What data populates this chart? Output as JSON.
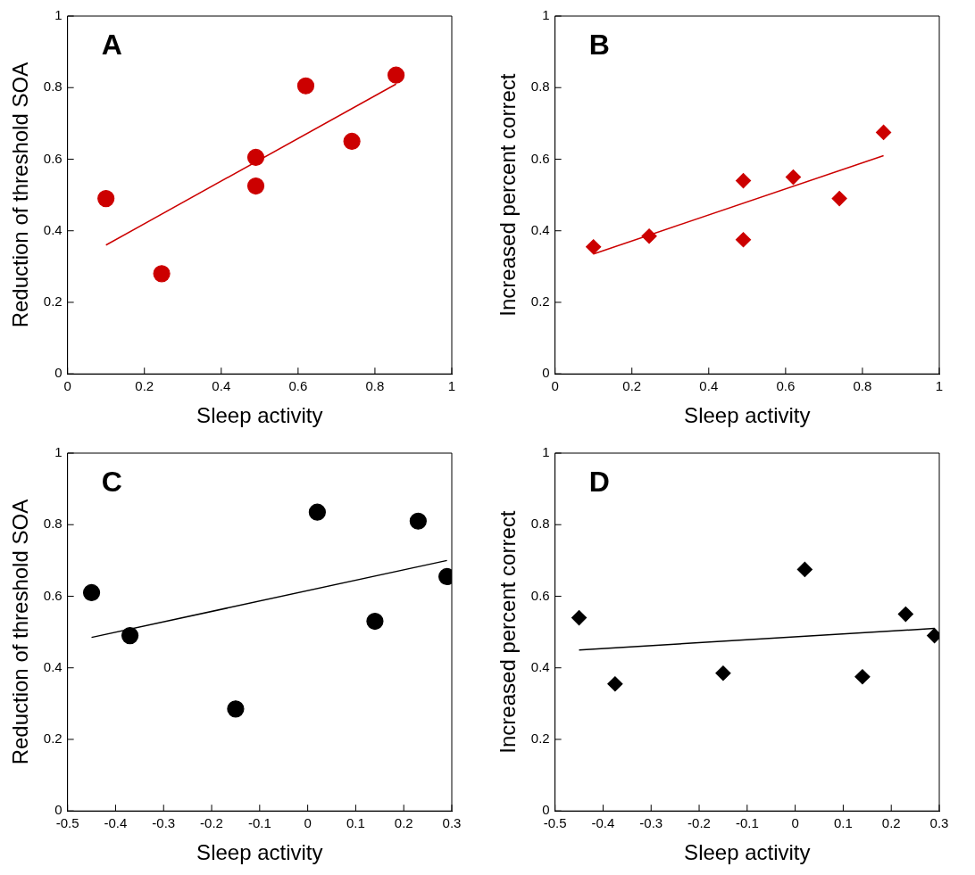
{
  "chart_data": [
    {
      "type": "scatter",
      "title": "A",
      "xlabel": "Sleep activity",
      "ylabel": "Reduction of threshold SOA",
      "xlim": [
        0,
        1
      ],
      "xticks": [
        0,
        0.2,
        0.4,
        0.6,
        0.8,
        1
      ],
      "ylim": [
        0,
        1
      ],
      "yticks": [
        0,
        0.2,
        0.4,
        0.6,
        0.8,
        1
      ],
      "grid": false,
      "marker": "circle",
      "series": [
        {
          "color": "#cc0000",
          "x": [
            0.1,
            0.245,
            0.49,
            0.49,
            0.62,
            0.74,
            0.855
          ],
          "values": [
            0.49,
            0.28,
            0.605,
            0.525,
            0.805,
            0.65,
            0.835
          ]
        },
        {
          "type": "line",
          "marker": "none",
          "color": "#cc0000",
          "x": [
            0.1,
            0.855
          ],
          "values": [
            0.36,
            0.81
          ]
        }
      ]
    },
    {
      "type": "scatter",
      "title": "B",
      "xlabel": "Sleep activity",
      "ylabel": "Increased percent correct",
      "xlim": [
        0,
        1
      ],
      "xticks": [
        0,
        0.2,
        0.4,
        0.6,
        0.8,
        1
      ],
      "ylim": [
        0,
        1
      ],
      "yticks": [
        0,
        0.2,
        0.4,
        0.6,
        0.8,
        1
      ],
      "grid": false,
      "marker": "diamond",
      "series": [
        {
          "color": "#cc0000",
          "x": [
            0.1,
            0.245,
            0.49,
            0.49,
            0.62,
            0.74,
            0.855
          ],
          "values": [
            0.355,
            0.385,
            0.54,
            0.375,
            0.55,
            0.49,
            0.675
          ]
        },
        {
          "type": "line",
          "marker": "none",
          "color": "#cc0000",
          "x": [
            0.1,
            0.855
          ],
          "values": [
            0.335,
            0.61
          ]
        }
      ]
    },
    {
      "type": "scatter",
      "title": "C",
      "xlabel": "Sleep activity",
      "ylabel": "Reduction of threshold SOA",
      "xlim": [
        -0.5,
        0.3
      ],
      "xticks": [
        -0.5,
        -0.4,
        -0.3,
        -0.2,
        -0.1,
        0,
        0.1,
        0.2,
        0.3
      ],
      "ylim": [
        0,
        1
      ],
      "yticks": [
        0,
        0.2,
        0.4,
        0.6,
        0.8,
        1
      ],
      "grid": false,
      "marker": "circle",
      "series": [
        {
          "color": "#000000",
          "x": [
            -0.45,
            -0.37,
            -0.15,
            0.02,
            0.14,
            0.23,
            0.29
          ],
          "values": [
            0.61,
            0.49,
            0.285,
            0.835,
            0.53,
            0.81,
            0.655
          ]
        },
        {
          "type": "line",
          "marker": "none",
          "color": "#000000",
          "x": [
            -0.45,
            0.29
          ],
          "values": [
            0.485,
            0.7
          ]
        }
      ]
    },
    {
      "type": "scatter",
      "title": "D",
      "xlabel": "Sleep activity",
      "ylabel": "Increased percent correct",
      "xlim": [
        -0.5,
        0.3
      ],
      "xticks": [
        -0.5,
        -0.4,
        -0.3,
        -0.2,
        -0.1,
        0,
        0.1,
        0.2,
        0.3
      ],
      "ylim": [
        0,
        1
      ],
      "yticks": [
        0,
        0.2,
        0.4,
        0.6,
        0.8,
        1
      ],
      "grid": false,
      "marker": "diamond",
      "series": [
        {
          "color": "#000000",
          "x": [
            -0.45,
            -0.375,
            -0.15,
            0.02,
            0.14,
            0.23,
            0.29
          ],
          "values": [
            0.54,
            0.355,
            0.385,
            0.675,
            0.375,
            0.55,
            0.49
          ]
        },
        {
          "type": "line",
          "marker": "none",
          "color": "#000000",
          "x": [
            -0.45,
            0.29
          ],
          "values": [
            0.45,
            0.51
          ]
        }
      ]
    }
  ]
}
